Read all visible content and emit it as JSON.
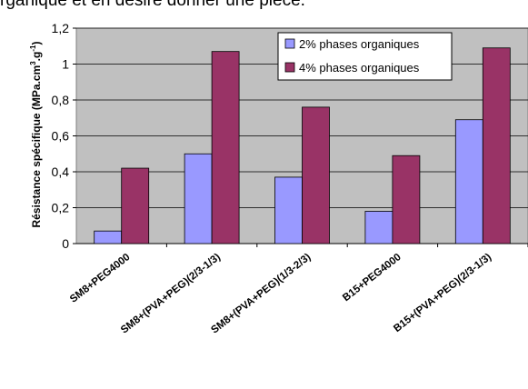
{
  "header_fragment": "rganique et en désire donner une pièce.",
  "chart_data": {
    "type": "bar",
    "categories": [
      "SM8+PEG4000",
      "SM8+(PVA+PEG)(2/3-1/3)",
      "SM8+(PVA+PEG)(1/3-2/3)",
      "B15+PEG4000",
      "B15+(PVA+PEG)(2/3-1/3)"
    ],
    "series": [
      {
        "name": "2% phases organiques",
        "values": [
          0.07,
          0.5,
          0.37,
          0.18,
          0.69
        ]
      },
      {
        "name": "4% phases organiques",
        "values": [
          0.42,
          1.07,
          0.76,
          0.49,
          1.09
        ]
      }
    ],
    "ylabel": "Résistance spécifique (MPa.cm",
    "ylabel_unit_sup": "3",
    "ylabel_unit_mid": ".g",
    "ylabel_unit_sup2": "-1",
    "ylabel_end": ")",
    "yticks": [
      "0",
      "0,2",
      "0,4",
      "0,6",
      "0,8",
      "1",
      "1,2"
    ],
    "ylim": [
      0,
      1.2
    ],
    "legend_position": "top-right",
    "grid": true,
    "colors": {
      "series1": "#9999ff",
      "series2": "#993366",
      "plot_bg": "#c0c0c0"
    }
  }
}
